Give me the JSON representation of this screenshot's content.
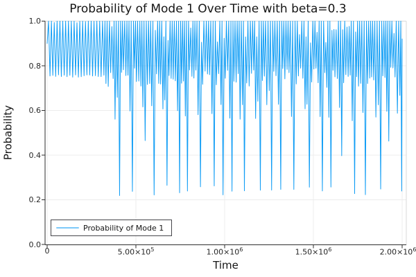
{
  "chart_data": {
    "type": "line",
    "title": "Probability of Mode 1 Over Time with beta=0.3",
    "xlabel": "Time",
    "ylabel": "Probability",
    "xlim": [
      -12000,
      2024000
    ],
    "ylim": [
      0.0,
      1.0
    ],
    "grid": true,
    "xticks": {
      "values": [
        0,
        500000,
        1000000,
        1500000,
        2000000
      ],
      "labels": [
        "0",
        "5.00×10^5",
        "1.00×10^6",
        "1.50×10^6",
        "2.00×10^6"
      ]
    },
    "yticks": {
      "values": [
        0.0,
        0.2,
        0.4,
        0.6,
        0.8,
        1.0
      ],
      "labels": [
        "0.0",
        "0.2",
        "0.4",
        "0.6",
        "0.8",
        "1.0"
      ]
    },
    "legend": {
      "position": "bottom-left",
      "entries": [
        {
          "label": "Probability of Mode 1",
          "color": "#109df5"
        }
      ]
    },
    "style": {
      "background": "#ffffff",
      "grid_color": "#ececec",
      "spine_color": "#2e2e2e",
      "frame_light_color": "#d9d9d9",
      "tick_text_color": "#262626",
      "text_color": "#151515"
    },
    "series": [
      {
        "name": "Probability of Mode 1",
        "color": "#109df5",
        "line_width": 1,
        "x_range": [
          0,
          2000000
        ],
        "pattern": {
          "description": "Rapid oscillation of P(mode 1). Until t≈3.05×10^5 it oscillates tightly between ≈0.755 and 1.0. Afterwards it forms quasi-periodic bursts: clusters of peaks near 1.0 with troughs ≈0.55–0.80, punctuated by deep dips down to ≈0.22–0.27 roughly every 6.6×10^4 time units (occasional shallower dips to ≈0.38–0.50).",
          "phase1": {
            "t_start": 0,
            "t_end": 305000,
            "min": 0.755,
            "max": 1.0,
            "period": 16000
          },
          "phase2": {
            "t_start": 305000,
            "t_end": 2000000,
            "max": 1.0,
            "half_period_base": 5200,
            "half_period_jitter": 1800,
            "fast_trough_range": [
              0.7,
              0.8
            ],
            "medium_trough_range": [
              0.55,
              0.63
            ],
            "deep_dip_range": [
              0.215,
              0.265
            ],
            "shallow_deep_dip_range": [
              0.38,
              0.5
            ],
            "shallow_deep_probability": 0.18,
            "deep_dip_interval": 66000,
            "seed": 42
          }
        }
      }
    ]
  }
}
